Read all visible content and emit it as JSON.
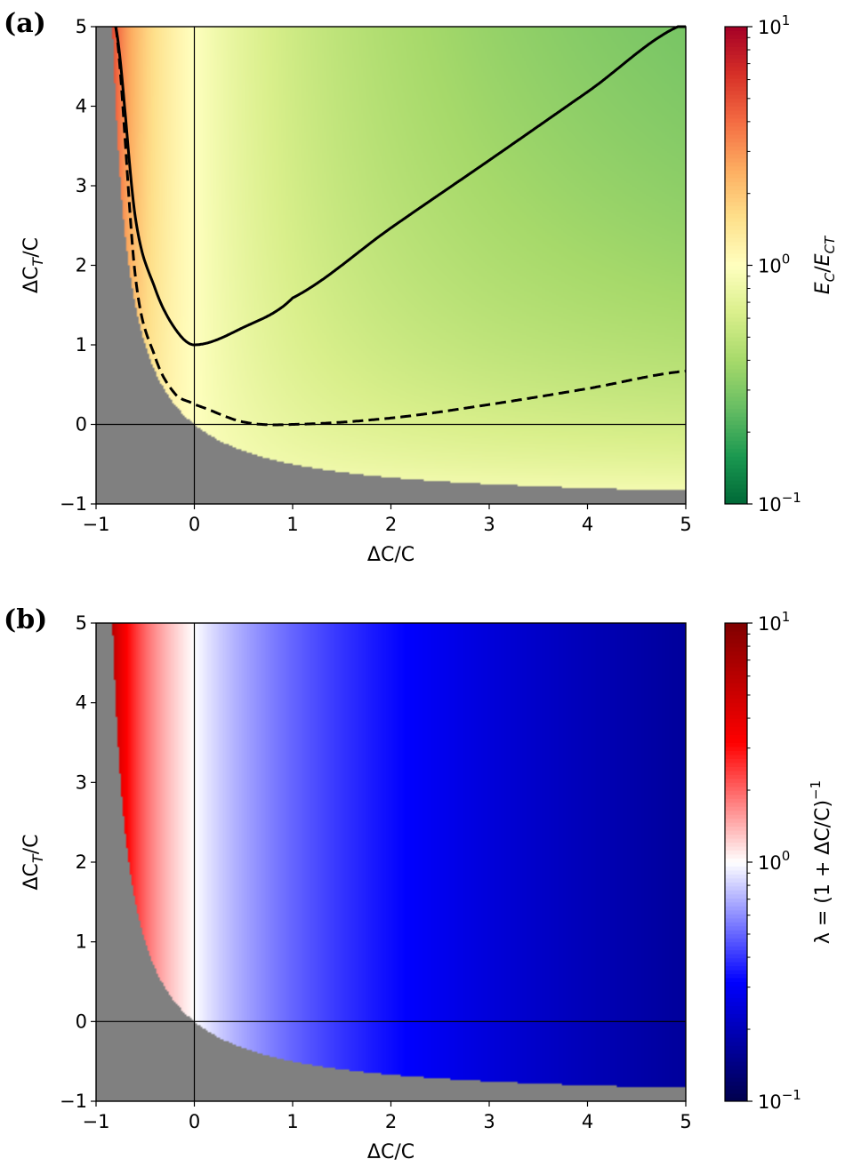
{
  "chart_data": [
    {
      "panel": "(a)",
      "panel_label": "(a)",
      "type": "heatmap",
      "xlabel": "ΔC/C",
      "ylabel": "ΔC_T/C",
      "xlim": [
        -1,
        5
      ],
      "ylim": [
        -1,
        5
      ],
      "x_ticks": [
        "−1",
        "0",
        "1",
        "2",
        "3",
        "4",
        "5"
      ],
      "y_ticks": [
        "−1",
        "0",
        "1",
        "2",
        "3",
        "4",
        "5"
      ],
      "colorbar": {
        "label": "E_C/E_CT",
        "scale": "log",
        "range": [
          0.1,
          10
        ],
        "ticks": [
          "10",
          "10",
          "10"
        ],
        "tick_exponents": [
          "−1",
          "0",
          "1"
        ],
        "colormap": "RdYlGn_r"
      },
      "masked_region": "ΔC_T/C < −ΔC/C / (1 + ΔC/C) (grey)",
      "reference_lines": [
        "x = 0",
        "y = 0"
      ],
      "curves": [
        {
          "style": "solid",
          "x": [
            -0.8,
            -0.6,
            -0.4,
            -0.2,
            0,
            0.5,
            1,
            2,
            3,
            4,
            5
          ],
          "y": [
            5.0,
            2.6,
            1.71,
            1.21,
            1.0,
            1.22,
            1.59,
            2.47,
            3.32,
            4.18,
            5.04
          ]
        },
        {
          "style": "dashed",
          "x": [
            -0.8,
            -0.6,
            -0.4,
            -0.2,
            0,
            0.5,
            1,
            2,
            3,
            4,
            5
          ],
          "y": [
            5.0,
            1.86,
            0.85,
            0.39,
            0.25,
            0.03,
            0.0,
            0.08,
            0.25,
            0.45,
            0.67
          ]
        }
      ],
      "grid": false
    },
    {
      "panel": "(b)",
      "panel_label": "(b)",
      "type": "heatmap",
      "xlabel": "ΔC/C",
      "ylabel": "ΔC_T/C",
      "xlim": [
        -1,
        5
      ],
      "ylim": [
        -1,
        5
      ],
      "x_ticks": [
        "−1",
        "0",
        "1",
        "2",
        "3",
        "4",
        "5"
      ],
      "y_ticks": [
        "−1",
        "0",
        "1",
        "2",
        "3",
        "4",
        "5"
      ],
      "colorbar": {
        "label": "λ = (1 + ΔC/C)",
        "label_exponent": "−1",
        "scale": "log",
        "range": [
          0.1,
          10
        ],
        "ticks": [
          "10",
          "10",
          "10"
        ],
        "tick_exponents": [
          "−1",
          "0",
          "1"
        ],
        "colormap": "seismic"
      },
      "masked_region": "ΔC_T/C < −ΔC/C / (1 + ΔC/C) (grey)",
      "reference_lines": [
        "x = 0",
        "y = 0"
      ],
      "grid": false
    }
  ]
}
